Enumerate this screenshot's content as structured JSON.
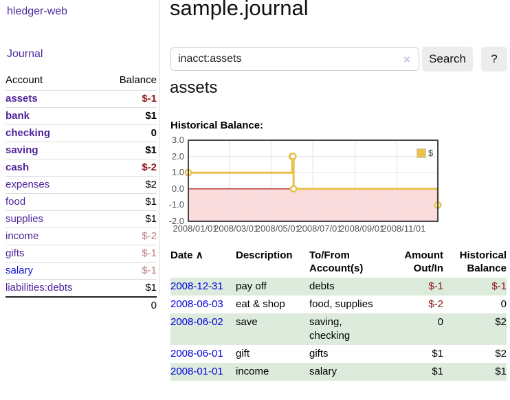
{
  "app": {
    "brand": "hledger-web",
    "nav_journal": "Journal"
  },
  "sidebar": {
    "columns": {
      "account": "Account",
      "balance": "Balance"
    },
    "accounts": [
      {
        "name": "assets",
        "balance": "$-1",
        "indent": 1,
        "bold": true,
        "balance_style": "negative"
      },
      {
        "name": "bank",
        "balance": "$1",
        "indent": 2,
        "bold": true,
        "balance_style": "normal"
      },
      {
        "name": "checking",
        "balance": "0",
        "indent": 3,
        "bold": true,
        "balance_style": "normal"
      },
      {
        "name": "saving",
        "balance": "$1",
        "indent": 3,
        "bold": true,
        "balance_style": "normal"
      },
      {
        "name": "cash",
        "balance": "$-2",
        "indent": 2,
        "bold": true,
        "balance_style": "negative"
      },
      {
        "name": "expenses",
        "balance": "$2",
        "indent": 1,
        "bold": false,
        "balance_style": "normal"
      },
      {
        "name": "food",
        "balance": "$1",
        "indent": 2,
        "bold": false,
        "balance_style": "normal"
      },
      {
        "name": "supplies",
        "balance": "$1",
        "indent": 2,
        "bold": false,
        "balance_style": "normal"
      },
      {
        "name": "income",
        "balance": "$-2",
        "indent": 1,
        "bold": false,
        "balance_style": "negative-faded"
      },
      {
        "name": "gifts",
        "balance": "$-1",
        "indent": 2,
        "bold": false,
        "balance_style": "negative-faded"
      },
      {
        "name": "salary",
        "balance": "$-1",
        "indent": 2,
        "bold": false,
        "balance_style": "negative-faded"
      },
      {
        "name": "liabilities:debts",
        "balance": "$1",
        "indent": 1,
        "bold": false,
        "balance_style": "normal"
      }
    ],
    "total": "0"
  },
  "main": {
    "title": "sample.journal",
    "search": {
      "value": "inacct:assets",
      "clear_icon": "×",
      "button": "Search",
      "help_button": "?"
    },
    "account_heading": "assets",
    "chart_heading": "Historical Balance:"
  },
  "chart_data": {
    "type": "line",
    "title": "Historical Balance",
    "series": [
      {
        "name": "$",
        "style": "step-after",
        "color": "#e8c24a",
        "points": [
          [
            "2008-01-01",
            1
          ],
          [
            "2008-06-01",
            2
          ],
          [
            "2008-06-02",
            2
          ],
          [
            "2008-06-03",
            0
          ],
          [
            "2008-12-31",
            -1
          ]
        ]
      }
    ],
    "xrange": [
      "2008-01-01",
      "2008-12-31"
    ],
    "ylim": [
      -2,
      3
    ],
    "yticks": [
      -2,
      -1,
      0,
      1,
      2,
      3
    ],
    "ytick_labels": [
      "-2.0",
      "-1.0",
      "0.0",
      "1.0",
      "2.0",
      "3.0"
    ],
    "xticks": [
      "2008-01-01",
      "2008-03-01",
      "2008-05-01",
      "2008-07-01",
      "2008-09-01",
      "2008-11-01"
    ],
    "xtick_labels": [
      "2008/01/01",
      "2008/03/01",
      "2008/05/01",
      "2008/07/01",
      "2008/09/01",
      "2008/11/01"
    ],
    "legend": {
      "position": "top-right",
      "label": "$"
    },
    "grid": true,
    "grid_color": "#e3e3e3",
    "zero_line_color": "#990000",
    "negative_region_fill": "#fbdcdc",
    "border_color": "#454545"
  },
  "register": {
    "headers": {
      "date": "Date",
      "sort_icon": "∧",
      "description": "Description",
      "account_line1": "To/From",
      "account_line2": "Account(s)",
      "amount_line1": "Amount",
      "amount_line2": "Out/In",
      "balance_line1": "Historical",
      "balance_line2": "Balance"
    },
    "rows": [
      {
        "date": "2008-12-31",
        "description": "pay off",
        "accounts": "debts",
        "amount": "$-1",
        "amount_negative": true,
        "balance": "$-1",
        "balance_negative": true
      },
      {
        "date": "2008-06-03",
        "description": "eat & shop",
        "accounts": "food, supplies",
        "amount": "$-2",
        "amount_negative": true,
        "balance": "0",
        "balance_negative": false
      },
      {
        "date": "2008-06-02",
        "description": "save",
        "accounts": "saving, checking",
        "amount": "0",
        "amount_negative": false,
        "balance": "$2",
        "balance_negative": false
      },
      {
        "date": "2008-06-01",
        "description": "gift",
        "accounts": "gifts",
        "amount": "$1",
        "amount_negative": false,
        "balance": "$2",
        "balance_negative": false
      },
      {
        "date": "2008-01-01",
        "description": "income",
        "accounts": "salary",
        "amount": "$1",
        "amount_negative": false,
        "balance": "$1",
        "balance_negative": false
      }
    ]
  }
}
